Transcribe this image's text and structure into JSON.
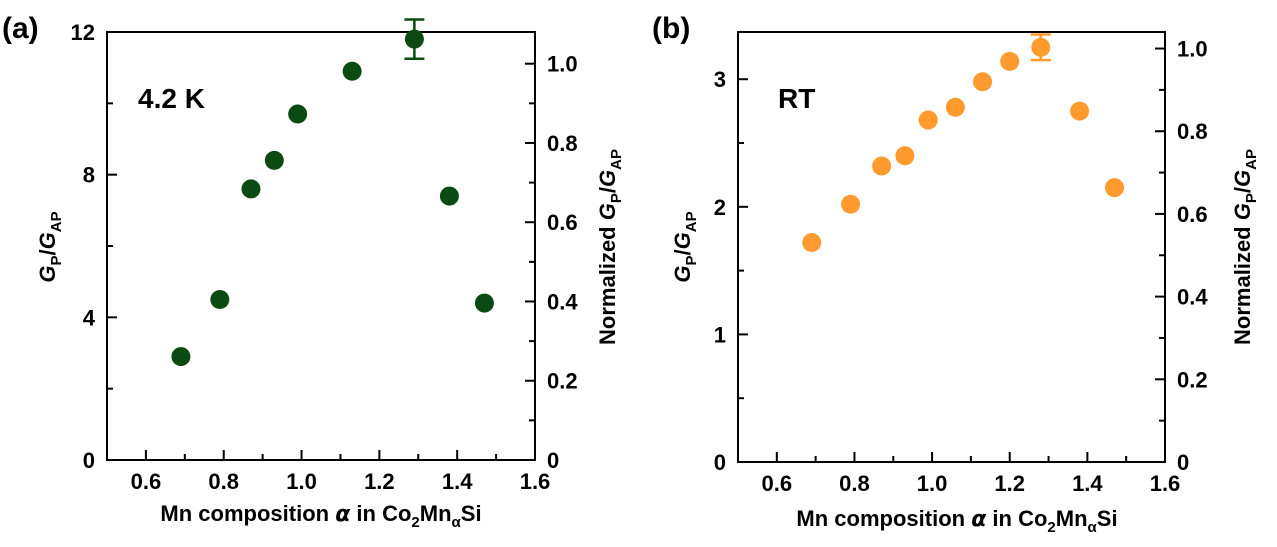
{
  "panels": [
    {
      "panel_label": "(a)",
      "annotation": "4.2 K",
      "xlabel": {
        "prefix": "Mn composition ",
        "alpha": "α",
        "mid": " in Co",
        "sub1": "2",
        "mn": "Mn",
        "sub2": "α",
        "suffix": "Si"
      },
      "ylabel_left": {
        "g1": "G",
        "s1": "P",
        "slash": "/",
        "g2": "G",
        "s2": "AP"
      },
      "ylabel_right": {
        "prefix": "Normalized ",
        "g1": "G",
        "s1": "P",
        "slash": "/",
        "g2": "G",
        "s2": "AP"
      },
      "color": "#0b4a12"
    },
    {
      "panel_label": "(b)",
      "annotation": "RT",
      "xlabel": {
        "prefix": "Mn composition ",
        "alpha": "α",
        "mid": " in Co",
        "sub1": "2",
        "mn": "Mn",
        "sub2": "α",
        "suffix": "Si"
      },
      "ylabel_left": {
        "g1": "G",
        "s1": "P",
        "slash": "/",
        "g2": "G",
        "s2": "AP"
      },
      "ylabel_right": {
        "prefix": "Normalized ",
        "g1": "G",
        "s1": "P",
        "slash": "/",
        "g2": "G",
        "s2": "AP"
      },
      "color": "#ff9a2e"
    }
  ],
  "chart_data": [
    {
      "type": "scatter",
      "panel": "(a)",
      "annotation": "4.2 K",
      "xlabel": "Mn composition α in Co2MnαSi",
      "ylabel": "GP/GAP",
      "ylabel_right": "Normalized GP/GAP",
      "xlim": [
        0.5,
        1.6
      ],
      "ylim": [
        0,
        12.0
      ],
      "ylim_right": [
        0,
        1.08
      ],
      "xticks": [
        "0.6",
        "0.8",
        "1.0",
        "1.2",
        "1.4",
        "1.6"
      ],
      "xtick_values": [
        0.6,
        0.8,
        1.0,
        1.2,
        1.4,
        1.6
      ],
      "yticks": [
        "0",
        "4",
        "8",
        "12"
      ],
      "ytick_values": [
        0,
        4,
        8,
        12
      ],
      "yticks_right": [
        "0",
        "0.2",
        "0.4",
        "0.6",
        "0.8",
        "1.0"
      ],
      "ytick_right_values": [
        0,
        0.2,
        0.4,
        0.6,
        0.8,
        1.0
      ],
      "x": [
        0.69,
        0.79,
        0.87,
        0.93,
        0.99,
        1.13,
        1.29,
        1.38,
        1.47
      ],
      "y": [
        2.9,
        4.5,
        7.6,
        8.4,
        9.7,
        10.9,
        11.8,
        7.4,
        4.4
      ],
      "error": {
        "x": 1.29,
        "y": 11.8,
        "yerr": 0.55
      },
      "color": "#0b4a12",
      "grid": false,
      "legend": "none"
    },
    {
      "type": "scatter",
      "panel": "(b)",
      "annotation": "RT",
      "xlabel": "Mn composition α in Co2MnαSi",
      "ylabel": "GP/GAP",
      "ylabel_right": "Normalized GP/GAP",
      "xlim": [
        0.5,
        1.6
      ],
      "ylim": [
        0,
        3.37
      ],
      "ylim_right": [
        0,
        1.04
      ],
      "xticks": [
        "0.6",
        "0.8",
        "1.0",
        "1.2",
        "1.4",
        "1.6"
      ],
      "xtick_values": [
        0.6,
        0.8,
        1.0,
        1.2,
        1.4,
        1.6
      ],
      "yticks": [
        "0",
        "1",
        "2",
        "3"
      ],
      "ytick_values": [
        0,
        1,
        2,
        3
      ],
      "yticks_right": [
        "0",
        "0.2",
        "0.4",
        "0.6",
        "0.8",
        "1.0"
      ],
      "ytick_right_values": [
        0,
        0.2,
        0.4,
        0.6,
        0.8,
        1.0
      ],
      "x": [
        0.69,
        0.79,
        0.87,
        0.93,
        0.99,
        1.06,
        1.13,
        1.2,
        1.28,
        1.38,
        1.47
      ],
      "y": [
        1.72,
        2.02,
        2.32,
        2.4,
        2.68,
        2.78,
        2.98,
        3.14,
        3.25,
        2.75,
        2.15
      ],
      "error": {
        "x": 1.28,
        "y": 3.25,
        "yerr": 0.1
      },
      "color": "#ff9a2e",
      "grid": false,
      "legend": "none"
    }
  ]
}
